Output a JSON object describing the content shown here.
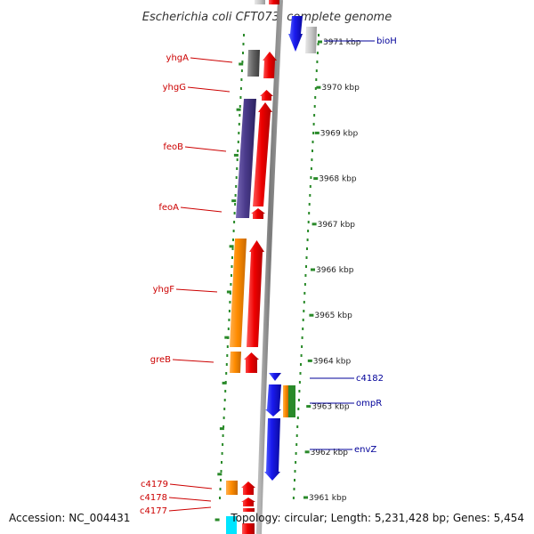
{
  "title": "Escherichia coli CFT073, complete genome",
  "ruler": [
    "3971 kbp",
    "3970 kbp",
    "3969 kbp",
    "3968 kbp",
    "3967 kbp",
    "3966 kbp",
    "3965 kbp",
    "3964 kbp",
    "3963 kbp",
    "3962 kbp",
    "3961 kbp"
  ],
  "genes_left": [
    "yhgA",
    "yhgG",
    "feoB",
    "feoA",
    "yhgF",
    "greB",
    "c4179",
    "c4178",
    "c4177"
  ],
  "genes_right": [
    "bioH",
    "c4182",
    "ompR",
    "envZ"
  ],
  "footer": {
    "accession": "Accession: NC_004431",
    "topology": "Topology: circular; Length: 5,231,428 bp; Genes: 5,454"
  },
  "colors": {
    "red": "#ee0000",
    "blue": "#1a1aee",
    "orange": "#ff8c00",
    "purple": "#4b3b8c",
    "gray": "#666666",
    "green": "#2a8a2a",
    "backbone": "#8a8a8a",
    "cyan": "#00e5ff",
    "label_left": "#cc0000",
    "label_right": "#000099"
  }
}
